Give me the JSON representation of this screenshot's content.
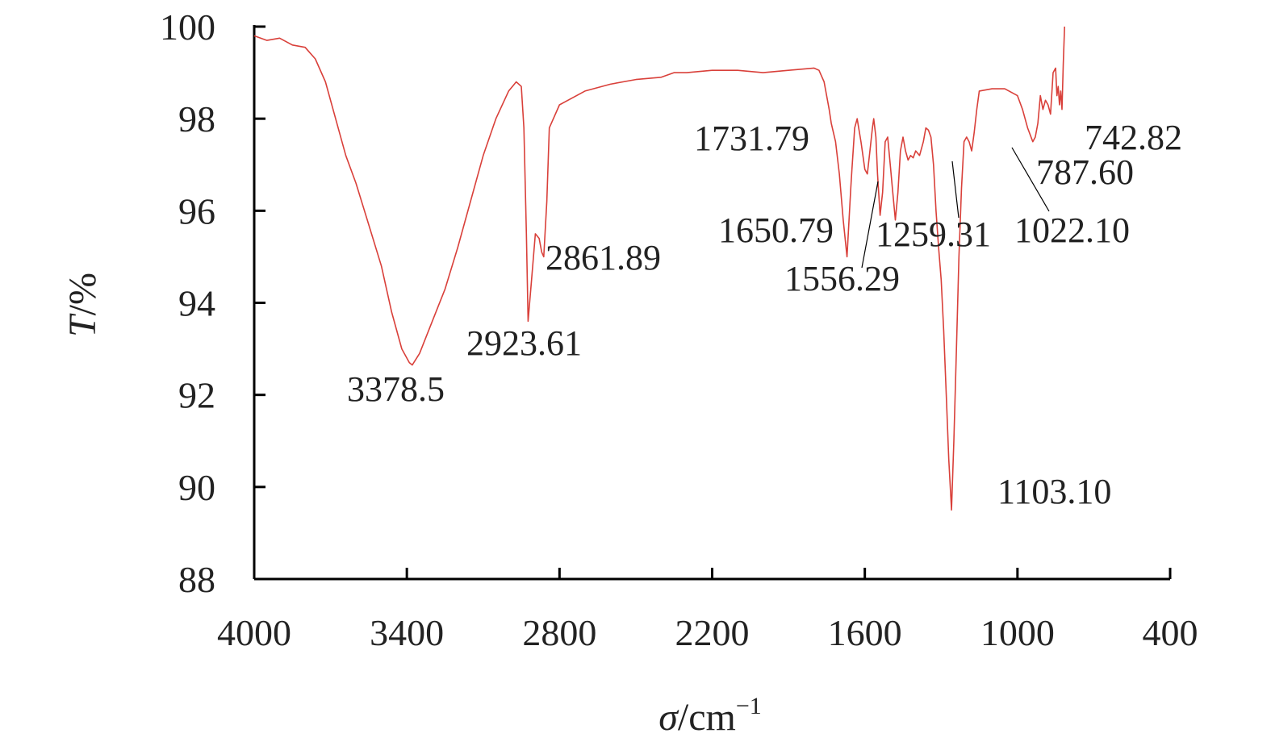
{
  "chart_data": {
    "type": "line",
    "title": "",
    "xlabel": {
      "symbol": "σ",
      "unit": "/cm",
      "sup": "−1"
    },
    "ylabel": {
      "symbol": "T",
      "unit": "/%"
    },
    "xlim": [
      4000,
      400
    ],
    "ylim": [
      88,
      100
    ],
    "x_reversed": true,
    "x_ticks": [
      4000,
      3400,
      2800,
      2200,
      1600,
      1000,
      400
    ],
    "y_ticks": [
      88,
      90,
      92,
      94,
      96,
      98,
      100
    ],
    "grid": false,
    "legend": "none",
    "line_color": "#d9403a",
    "series": [
      {
        "points": [
          [
            4000,
            99.8
          ],
          [
            3950,
            99.7
          ],
          [
            3900,
            99.75
          ],
          [
            3850,
            99.6
          ],
          [
            3800,
            99.55
          ],
          [
            3760,
            99.3
          ],
          [
            3720,
            98.8
          ],
          [
            3680,
            98.0
          ],
          [
            3640,
            97.2
          ],
          [
            3600,
            96.6
          ],
          [
            3550,
            95.7
          ],
          [
            3500,
            94.8
          ],
          [
            3460,
            93.8
          ],
          [
            3420,
            93.0
          ],
          [
            3390,
            92.7
          ],
          [
            3378.5,
            92.65
          ],
          [
            3350,
            92.9
          ],
          [
            3300,
            93.6
          ],
          [
            3250,
            94.3
          ],
          [
            3200,
            95.2
          ],
          [
            3150,
            96.2
          ],
          [
            3100,
            97.2
          ],
          [
            3050,
            98.0
          ],
          [
            3000,
            98.6
          ],
          [
            2970,
            98.8
          ],
          [
            2950,
            98.7
          ],
          [
            2940,
            97.8
          ],
          [
            2930,
            95.5
          ],
          [
            2923.61,
            93.6
          ],
          [
            2910,
            94.5
          ],
          [
            2895,
            95.5
          ],
          [
            2880,
            95.4
          ],
          [
            2870,
            95.1
          ],
          [
            2861.89,
            95.0
          ],
          [
            2850,
            96.2
          ],
          [
            2840,
            97.8
          ],
          [
            2800,
            98.3
          ],
          [
            2700,
            98.6
          ],
          [
            2600,
            98.75
          ],
          [
            2500,
            98.85
          ],
          [
            2400,
            98.9
          ],
          [
            2350,
            99.0
          ],
          [
            2300,
            99.0
          ],
          [
            2200,
            99.05
          ],
          [
            2100,
            99.05
          ],
          [
            2000,
            99.0
          ],
          [
            1900,
            99.05
          ],
          [
            1800,
            99.1
          ],
          [
            1780,
            99.05
          ],
          [
            1760,
            98.8
          ],
          [
            1740,
            98.2
          ],
          [
            1731.79,
            97.9
          ],
          [
            1715,
            97.5
          ],
          [
            1700,
            96.8
          ],
          [
            1685,
            95.8
          ],
          [
            1670,
            95.0
          ],
          [
            1655,
            96.5
          ],
          [
            1650.79,
            96.9
          ],
          [
            1640,
            97.8
          ],
          [
            1630,
            98.0
          ],
          [
            1615,
            97.5
          ],
          [
            1600,
            96.9
          ],
          [
            1590,
            96.8
          ],
          [
            1580,
            97.3
          ],
          [
            1570,
            97.8
          ],
          [
            1565,
            98.0
          ],
          [
            1556.29,
            97.6
          ],
          [
            1550,
            96.8
          ],
          [
            1540,
            95.9
          ],
          [
            1530,
            96.4
          ],
          [
            1520,
            97.5
          ],
          [
            1510,
            97.6
          ],
          [
            1500,
            97.0
          ],
          [
            1490,
            96.4
          ],
          [
            1480,
            95.8
          ],
          [
            1470,
            96.4
          ],
          [
            1460,
            97.3
          ],
          [
            1450,
            97.6
          ],
          [
            1440,
            97.3
          ],
          [
            1430,
            97.1
          ],
          [
            1420,
            97.2
          ],
          [
            1410,
            97.15
          ],
          [
            1400,
            97.3
          ],
          [
            1385,
            97.2
          ],
          [
            1370,
            97.5
          ],
          [
            1360,
            97.8
          ],
          [
            1350,
            97.75
          ],
          [
            1340,
            97.6
          ],
          [
            1330,
            97.0
          ],
          [
            1320,
            96.0
          ],
          [
            1310,
            95.2
          ],
          [
            1300,
            94.5
          ],
          [
            1290,
            93.4
          ],
          [
            1280,
            92.0
          ],
          [
            1270,
            90.6
          ],
          [
            1259.31,
            89.5
          ],
          [
            1250,
            91.0
          ],
          [
            1240,
            93.0
          ],
          [
            1230,
            95.0
          ],
          [
            1220,
            96.5
          ],
          [
            1210,
            97.5
          ],
          [
            1200,
            97.6
          ],
          [
            1190,
            97.5
          ],
          [
            1180,
            97.3
          ],
          [
            1170,
            97.7
          ],
          [
            1160,
            98.2
          ],
          [
            1150,
            98.6
          ],
          [
            1100,
            98.65
          ],
          [
            1050,
            98.65
          ],
          [
            1000,
            98.5
          ],
          [
            980,
            98.2
          ],
          [
            960,
            97.8
          ],
          [
            940,
            97.5
          ],
          [
            930,
            97.6
          ],
          [
            920,
            97.9
          ],
          [
            910,
            98.5
          ],
          [
            900,
            98.2
          ],
          [
            890,
            98.4
          ],
          [
            880,
            98.3
          ],
          [
            870,
            98.1
          ],
          [
            860,
            99.0
          ],
          [
            850,
            99.1
          ],
          [
            845,
            98.5
          ],
          [
            840,
            98.7
          ],
          [
            835,
            98.3
          ],
          [
            830,
            98.6
          ],
          [
            825,
            98.2
          ],
          [
            820,
            99.2
          ],
          [
            815,
            100.0
          ]
        ]
      }
    ],
    "annotations": [
      {
        "text": "3378.5"
      },
      {
        "text": "2923.61"
      },
      {
        "text": "2861.89"
      },
      {
        "text": "1731.79"
      },
      {
        "text": "1650.79"
      },
      {
        "text": "1556.29"
      },
      {
        "text": "1259.31"
      },
      {
        "text": "1103.10"
      },
      {
        "text": "1022.10"
      },
      {
        "text": "787.60"
      },
      {
        "text": "742.82"
      }
    ]
  }
}
